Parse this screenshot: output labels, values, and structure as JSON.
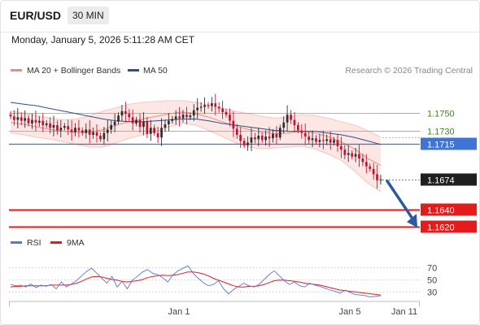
{
  "header": {
    "symbol": "EUR/USD",
    "timeframe": "30 MIN",
    "datetime": "Monday, January 5, 2026 5:11:28 AM CET"
  },
  "credit": "Research © 2026 Trading Central",
  "legend": {
    "bollinger": "MA 20 + Bollinger Bands",
    "ma50": "MA 50",
    "rsi": "RSI",
    "ma9": "9MA"
  },
  "colors": {
    "bollinger": "#f28b82",
    "ma50": "#2c4f8f",
    "rsi": "#5577dd",
    "ma9": "#e31b1b",
    "support": "#e31b1b",
    "resistance": "#7dbb3b",
    "pivot": "#3d74d6",
    "arrow": "#2c5aa0",
    "candle_up": "#2e2e2e",
    "candle_down": "#c8102e"
  },
  "chart_data": {
    "type": "candlestick",
    "instrument": "EUR/USD",
    "interval": "30 MIN",
    "y_range": [
      1.1608,
      1.1788
    ],
    "x_ticks": [
      "Jan 1",
      "Jan 5",
      "Jan 11"
    ],
    "levels": [
      {
        "value": 1.175,
        "label": "1.1750",
        "kind": "resistance"
      },
      {
        "value": 1.173,
        "label": "1.1730",
        "kind": "resistance"
      },
      {
        "value": 1.1715,
        "label": "1.1715",
        "kind": "pivot"
      },
      {
        "value": 1.1674,
        "label": "1.1674",
        "kind": "last"
      },
      {
        "value": 1.164,
        "label": "1.1640",
        "kind": "support"
      },
      {
        "value": 1.162,
        "label": "1.1620",
        "kind": "support"
      }
    ],
    "close": [
      1.1746,
      1.1742,
      1.1745,
      1.1741,
      1.1744,
      1.1738,
      1.1742,
      1.1739,
      1.1741,
      1.1736,
      1.1738,
      1.1733,
      1.1736,
      1.173,
      1.1733,
      1.1735,
      1.1731,
      1.1728,
      1.1733,
      1.173,
      1.1727,
      1.1731,
      1.1725,
      1.1728,
      1.1724,
      1.172,
      1.1727,
      1.1731,
      1.1736,
      1.174,
      1.1747,
      1.1752,
      1.1749,
      1.1745,
      1.1738,
      1.1742,
      1.1734,
      1.174,
      1.1726,
      1.1733,
      1.1727,
      1.1722,
      1.1733,
      1.1737,
      1.1741,
      1.1743,
      1.1746,
      1.1744,
      1.1748,
      1.1745,
      1.1747,
      1.1753,
      1.1756,
      1.1757,
      1.1759,
      1.1758,
      1.1761,
      1.1757,
      1.1755,
      1.1751,
      1.1748,
      1.1741,
      1.1732,
      1.1725,
      1.1718,
      1.1713,
      1.1716,
      1.1722,
      1.172,
      1.1724,
      1.1719,
      1.1723,
      1.1721,
      1.1726,
      1.1722,
      1.1733,
      1.1739,
      1.1748,
      1.1742,
      1.1736,
      1.173,
      1.1727,
      1.1723,
      1.1719,
      1.1721,
      1.1717,
      1.1719,
      1.1718,
      1.172,
      1.1716,
      1.1719,
      1.1712,
      1.1708,
      1.1702,
      1.1704,
      1.17,
      1.1703,
      1.1698,
      1.1694,
      1.1689,
      1.1686,
      1.168,
      1.1673,
      1.1674
    ],
    "bollinger": {
      "mid": [
        1.1739,
        1.1737,
        1.1734,
        1.1731,
        1.1729,
        1.1728,
        1.1728,
        1.1731,
        1.1736,
        1.174,
        1.1743,
        1.1746,
        1.1749,
        1.1751,
        1.1749,
        1.1745,
        1.174,
        1.1735,
        1.1731,
        1.1728,
        1.1726,
        1.1727,
        1.1729,
        1.1727,
        1.1723,
        1.1717,
        1.1709,
        1.1698,
        1.169
      ],
      "upper": [
        1.1752,
        1.175,
        1.1747,
        1.1744,
        1.1742,
        1.1743,
        1.1747,
        1.1752,
        1.1756,
        1.176,
        1.1762,
        1.1763,
        1.1764,
        1.1764,
        1.1762,
        1.1759,
        1.1756,
        1.1752,
        1.1749,
        1.1746,
        1.1744,
        1.1745,
        1.1748,
        1.1747,
        1.1744,
        1.174,
        1.1736,
        1.173,
        1.1722
      ],
      "lower": [
        1.1727,
        1.1725,
        1.1722,
        1.172,
        1.1717,
        1.1714,
        1.1711,
        1.1711,
        1.1716,
        1.1721,
        1.1725,
        1.1729,
        1.1734,
        1.1738,
        1.1736,
        1.173,
        1.1723,
        1.1716,
        1.1711,
        1.1709,
        1.171,
        1.1711,
        1.1712,
        1.1709,
        1.1703,
        1.1696,
        1.1684,
        1.167,
        1.166
      ]
    },
    "ma50": [
      1.1762,
      1.176,
      1.1758,
      1.1755,
      1.1752,
      1.1749,
      1.1746,
      1.1743,
      1.1741,
      1.174,
      1.174,
      1.1741,
      1.1742,
      1.1743,
      1.1743,
      1.1741,
      1.1738,
      1.1736,
      1.1734,
      1.1732,
      1.173,
      1.1729,
      1.1729,
      1.1729,
      1.1727,
      1.1725,
      1.1722,
      1.1718,
      1.1714
    ],
    "rsi": {
      "ticks": [
        70,
        50,
        30
      ],
      "y_range": [
        20,
        80
      ],
      "rsi": [
        42,
        40,
        41,
        38,
        43,
        37,
        41,
        39,
        42,
        35,
        46,
        38,
        43,
        48,
        56,
        63,
        68,
        60,
        52,
        44,
        55,
        38,
        47,
        35,
        49,
        55,
        62,
        66,
        60,
        58,
        53,
        46,
        57,
        64,
        68,
        72,
        60,
        52,
        45,
        40,
        42,
        48,
        35,
        27,
        34,
        39,
        44,
        40,
        38,
        42,
        50,
        58,
        64,
        56,
        48,
        42,
        46,
        40,
        38,
        44,
        41,
        39,
        36,
        33,
        31,
        28,
        33,
        29,
        26,
        25,
        24,
        22,
        23,
        24
      ],
      "ma9": [
        38,
        39,
        39,
        40,
        40,
        40,
        40,
        40,
        41,
        41,
        41,
        41,
        42,
        44,
        47,
        51,
        54,
        55,
        54,
        52,
        50,
        49,
        47,
        46,
        47,
        48,
        50,
        53,
        55,
        56,
        57,
        56,
        57,
        58,
        60,
        62,
        62,
        61,
        59,
        56,
        52,
        49,
        46,
        43,
        40,
        38,
        38,
        39,
        39,
        40,
        42,
        45,
        48,
        49,
        49,
        48,
        47,
        46,
        44,
        43,
        42,
        41,
        39,
        37,
        35,
        33,
        32,
        31,
        30,
        29,
        28,
        27,
        26,
        25
      ]
    }
  }
}
